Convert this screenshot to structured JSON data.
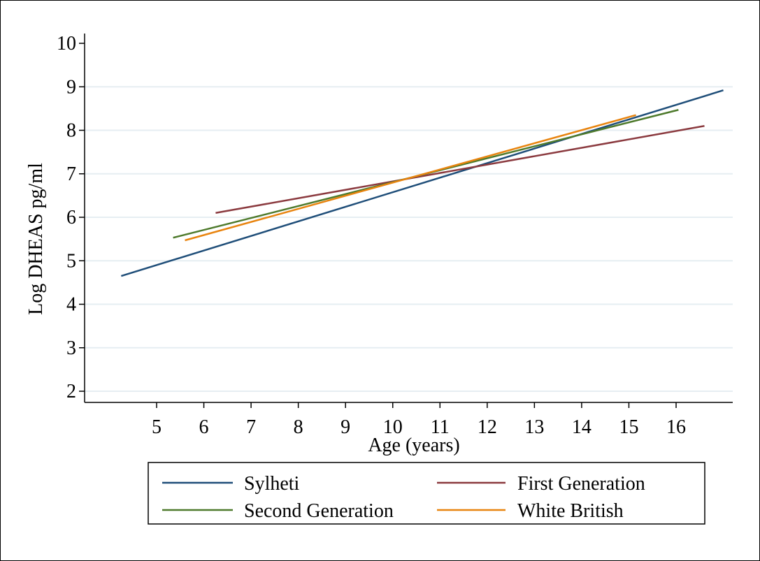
{
  "chart_data": {
    "type": "line",
    "xlabel": "Age (years)",
    "ylabel": "Log DHEAS pg/ml",
    "xlim": [
      4.0,
      17.2
    ],
    "ylim": [
      1.8,
      10.1
    ],
    "xticks": [
      5,
      6,
      7,
      8,
      9,
      10,
      11,
      12,
      13,
      14,
      15,
      16
    ],
    "yticks": [
      2,
      3,
      4,
      5,
      6,
      7,
      8,
      9,
      10
    ],
    "grid": "horizontal",
    "legend_position": "bottom",
    "series": [
      {
        "name": "Sylheti",
        "color": "#1f4e79",
        "x": [
          4.25,
          17.0
        ],
        "y": [
          4.65,
          8.92
        ]
      },
      {
        "name": "First Generation",
        "color": "#8b3a3f",
        "x": [
          6.25,
          16.6
        ],
        "y": [
          6.1,
          8.1
        ]
      },
      {
        "name": "Second Generation",
        "color": "#4e7a2c",
        "x": [
          5.35,
          16.05
        ],
        "y": [
          5.53,
          8.47
        ]
      },
      {
        "name": "White British",
        "color": "#e8840f",
        "x": [
          5.6,
          15.15
        ],
        "y": [
          5.47,
          8.35
        ]
      }
    ]
  }
}
